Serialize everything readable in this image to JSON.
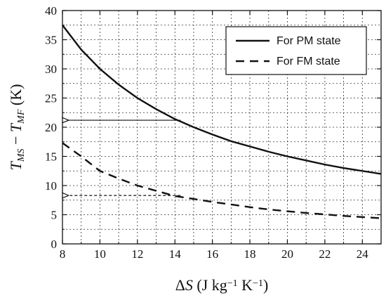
{
  "chart_data": {
    "type": "line",
    "xlim": [
      8,
      25
    ],
    "ylim": [
      0,
      40
    ],
    "xticks": [
      8,
      10,
      12,
      14,
      16,
      18,
      20,
      22,
      24
    ],
    "yticks": [
      0,
      5,
      10,
      15,
      20,
      25,
      30,
      35,
      40
    ],
    "grid": true,
    "legend_position": "top-right",
    "series": [
      {
        "name": "For PM state",
        "line_style": "solid",
        "color": "#111111",
        "x": [
          8,
          9,
          10,
          11,
          12,
          13,
          14,
          15,
          16,
          17,
          18,
          19,
          20,
          21,
          22,
          23,
          24,
          25
        ],
        "y": [
          37.5,
          33.3,
          30.0,
          27.3,
          25.0,
          23.1,
          21.4,
          20.0,
          18.75,
          17.6,
          16.7,
          15.8,
          15.0,
          14.3,
          13.6,
          13.0,
          12.5,
          12.0
        ]
      },
      {
        "name": "For FM state",
        "line_style": "dashed",
        "color": "#111111",
        "x": [
          8,
          9,
          10,
          11,
          12,
          13,
          14,
          15,
          16,
          17,
          18,
          19,
          20,
          21,
          22,
          23,
          24,
          25
        ],
        "y": [
          17.3,
          15.0,
          12.5,
          11.2,
          10.0,
          9.1,
          8.2,
          7.7,
          7.2,
          6.75,
          6.3,
          5.9,
          5.6,
          5.3,
          5.05,
          4.8,
          4.6,
          4.4
        ]
      }
    ],
    "annotations": [
      {
        "type": "arrow",
        "style": "solid",
        "from": [
          14.3,
          21.2
        ],
        "to": [
          8.3,
          21.2
        ]
      },
      {
        "type": "arrow",
        "style": "dashed",
        "from": [
          14.3,
          8.3
        ],
        "to": [
          8.3,
          8.3
        ]
      }
    ],
    "ylabel": {
      "parts": [
        {
          "text": "T",
          "italic": true
        },
        {
          "text": "MS",
          "italic": true,
          "sub": true
        },
        {
          "text": " − "
        },
        {
          "text": "T",
          "italic": true
        },
        {
          "text": "MF",
          "italic": true,
          "sub": true
        },
        {
          "text": " (K)"
        }
      ]
    },
    "xlabel": {
      "parts": [
        {
          "text": "Δ"
        },
        {
          "text": "S",
          "italic": true
        },
        {
          "text": " (J kg"
        },
        {
          "text": "−1",
          "sup": true
        },
        {
          "text": " K"
        },
        {
          "text": "−1",
          "sup": true
        },
        {
          "text": ")"
        }
      ]
    }
  }
}
